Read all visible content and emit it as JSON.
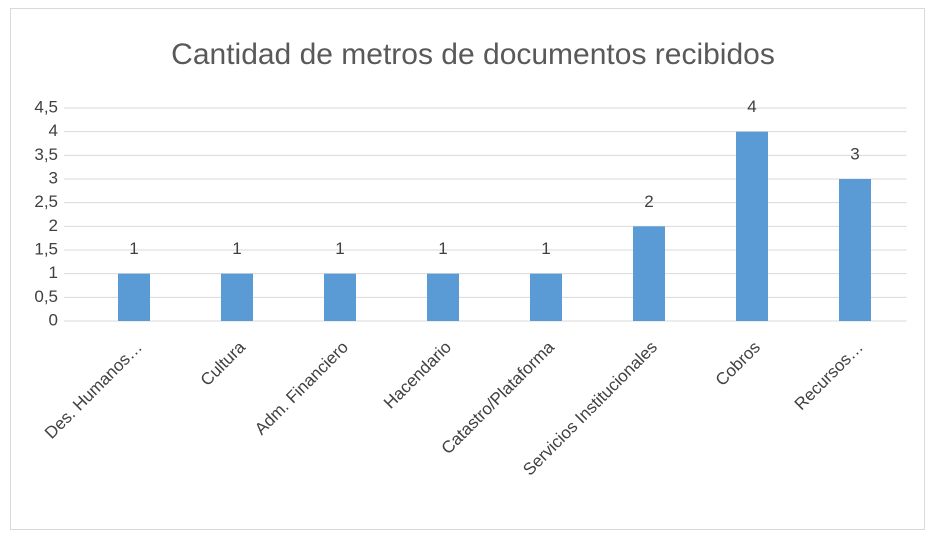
{
  "chart_data": {
    "type": "bar",
    "title": "Cantidad de metros de documentos recibidos",
    "categories": [
      "Des. Humanos…",
      "Cultura",
      "Adm. Financiero",
      "Hacendario",
      "Catastro/Plataforma",
      "Servicios Institucionales",
      "Cobros",
      "Recursos…"
    ],
    "values": [
      1,
      1,
      1,
      1,
      1,
      2,
      4,
      3
    ],
    "color": "#5b9bd5",
    "ylim": [
      0,
      4.5
    ],
    "yticks": [
      0,
      {
        "value": 0.5,
        "label": "0,5"
      },
      1,
      {
        "value": 1.5,
        "label": "1,5"
      },
      2,
      {
        "value": 2.5,
        "label": "2,5"
      },
      3,
      {
        "value": 3.5,
        "label": "3,5"
      },
      4,
      {
        "value": 4.5,
        "label": "4,5"
      }
    ],
    "grid": true
  }
}
